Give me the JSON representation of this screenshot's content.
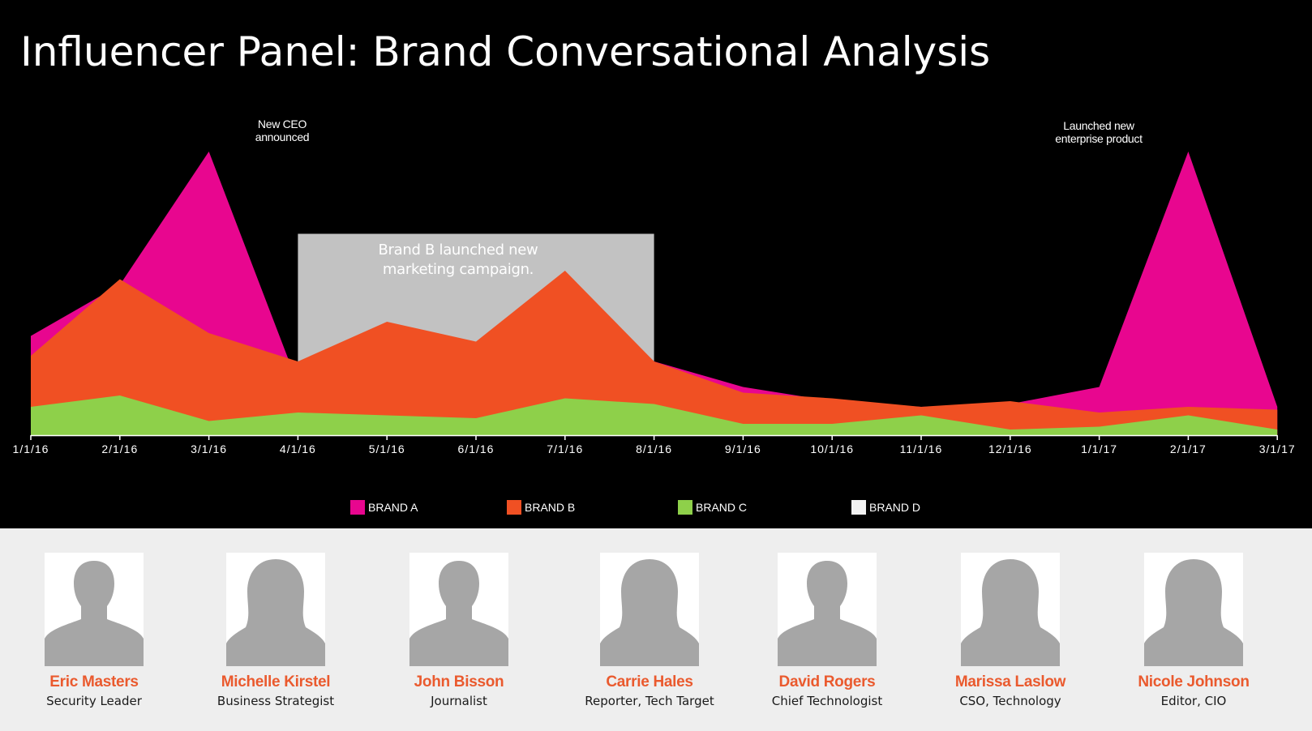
{
  "page": {
    "title": "Influencer Panel: Brand Conversational Analysis"
  },
  "chart_data": {
    "type": "area",
    "title": "",
    "xlabel": "",
    "ylabel": "",
    "categories": [
      "1/1/16",
      "2/1/16",
      "3/1/16",
      "4/1/16",
      "5/1/16",
      "6/1/16",
      "7/1/16",
      "8/1/16",
      "9/1/16",
      "10/1/16",
      "11/1/16",
      "12/1/16",
      "1/1/17",
      "2/1/17",
      "3/1/17"
    ],
    "ylim": [
      0,
      100
    ],
    "grid": false,
    "legend_position": "bottom",
    "series": [
      {
        "name": "BRAND D",
        "color": "#c2c2c2",
        "values": [
          null,
          null,
          null,
          71,
          71,
          71,
          71,
          71,
          null,
          null,
          null,
          null,
          null,
          null,
          null
        ]
      },
      {
        "name": "BRAND A",
        "color": "#e8068f",
        "values": [
          35,
          53,
          100,
          18,
          38,
          32,
          56,
          26,
          17,
          12,
          10,
          11,
          17,
          100,
          10
        ]
      },
      {
        "name": "BRAND B",
        "color": "#f05023",
        "values": [
          28,
          55,
          36,
          26,
          40,
          33,
          58,
          26,
          15,
          13,
          10,
          12,
          8,
          10,
          9
        ]
      },
      {
        "name": "BRAND C",
        "color": "#8ed04a",
        "values": [
          10,
          14,
          5,
          8,
          7,
          6,
          13,
          11,
          4,
          4,
          7,
          2,
          3,
          7,
          2
        ]
      }
    ],
    "legend": [
      {
        "name": "BRAND A",
        "color": "#e8068f"
      },
      {
        "name": "BRAND B",
        "color": "#f05023"
      },
      {
        "name": "BRAND C",
        "color": "#8ed04a"
      },
      {
        "name": "BRAND D",
        "color": "#f2f2f2"
      }
    ],
    "annotations": [
      {
        "id": "ceo",
        "lines": [
          "New CEO",
          "announced"
        ]
      },
      {
        "id": "campaign",
        "lines": [
          "Brand B launched new",
          "marketing campaign."
        ]
      },
      {
        "id": "product",
        "lines": [
          "Launched new",
          "enterprise product"
        ]
      }
    ]
  },
  "influencers": [
    {
      "name": "Eric Masters",
      "role": "Security Leader",
      "silhouette": "male"
    },
    {
      "name": "Michelle Kirstel",
      "role": "Business Strategist",
      "silhouette": "female"
    },
    {
      "name": "John Bisson",
      "role": "Journalist",
      "silhouette": "male"
    },
    {
      "name": "Carrie Hales",
      "role": "Reporter, Tech Target",
      "silhouette": "female"
    },
    {
      "name": "David Rogers",
      "role": "Chief Technologist",
      "silhouette": "male"
    },
    {
      "name": "Marissa Laslow",
      "role": "CSO, Technology",
      "silhouette": "female"
    },
    {
      "name": "Nicole Johnson",
      "role": "Editor, CIO",
      "silhouette": "female"
    }
  ]
}
